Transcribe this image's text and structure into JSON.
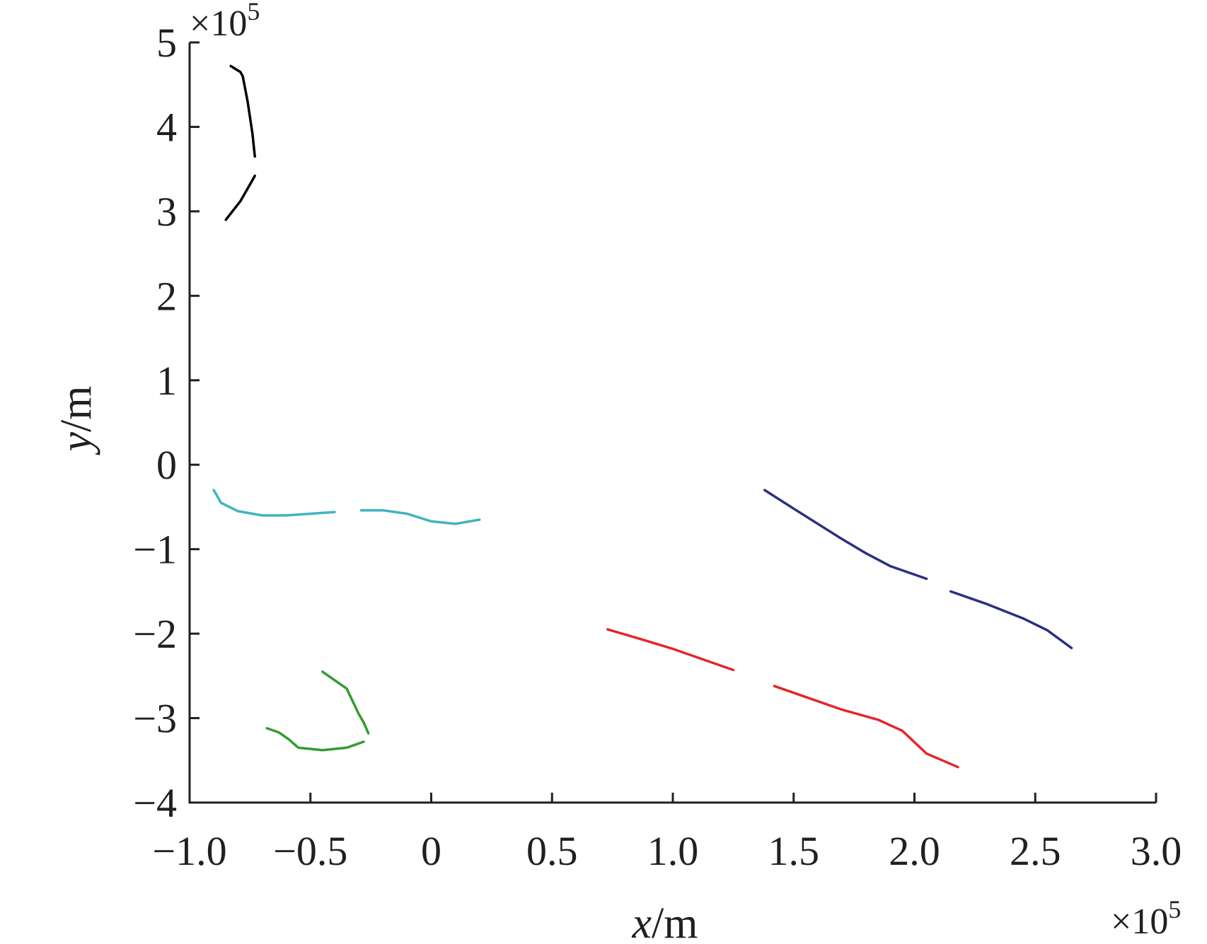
{
  "chart_data": {
    "type": "line",
    "title": "",
    "xlabel": {
      "var": "x",
      "unit": "/m"
    },
    "ylabel": {
      "var": "y",
      "unit": "/m"
    },
    "x_multiplier": {
      "base": "×10",
      "exp": "5"
    },
    "y_multiplier": {
      "base": "×10",
      "exp": "5"
    },
    "xlim": [
      -1.0,
      3.0
    ],
    "ylim": [
      -4,
      5
    ],
    "x_ticks": [
      -1.0,
      -0.5,
      0,
      0.5,
      1.0,
      1.5,
      2.0,
      2.5,
      3.0
    ],
    "x_tick_labels": [
      "−1.0",
      "−0.5",
      "0",
      "0.5",
      "1.0",
      "1.5",
      "2.0",
      "2.5",
      "3.0"
    ],
    "y_ticks": [
      -4,
      -3,
      -2,
      -1,
      0,
      1,
      2,
      3,
      4,
      5
    ],
    "y_tick_labels": [
      "−4",
      "−3",
      "−2",
      "−1",
      "0",
      "1",
      "2",
      "3",
      "4",
      "5"
    ],
    "grid": false,
    "legend": "none",
    "series": [
      {
        "color": "#000000",
        "segments": [
          [
            [
              -0.83,
              4.72
            ],
            [
              -0.79,
              4.65
            ],
            [
              -0.78,
              4.6
            ],
            [
              -0.76,
              4.3
            ],
            [
              -0.74,
              3.92
            ],
            [
              -0.73,
              3.65
            ]
          ],
          [
            [
              -0.73,
              3.42
            ],
            [
              -0.75,
              3.32
            ],
            [
              -0.79,
              3.12
            ],
            [
              -0.85,
              2.9
            ]
          ]
        ]
      },
      {
        "color": "#40b4be",
        "segments": [
          [
            [
              -0.9,
              -0.3
            ],
            [
              -0.87,
              -0.45
            ],
            [
              -0.8,
              -0.55
            ],
            [
              -0.7,
              -0.6
            ],
            [
              -0.6,
              -0.6
            ],
            [
              -0.5,
              -0.58
            ],
            [
              -0.4,
              -0.56
            ]
          ],
          [
            [
              -0.29,
              -0.54
            ],
            [
              -0.2,
              -0.54
            ],
            [
              -0.1,
              -0.58
            ],
            [
              0.0,
              -0.67
            ],
            [
              0.1,
              -0.7
            ],
            [
              0.2,
              -0.65
            ]
          ]
        ]
      },
      {
        "color": "#2b2f80",
        "segments": [
          [
            [
              1.38,
              -0.3
            ],
            [
              1.5,
              -0.52
            ],
            [
              1.6,
              -0.7
            ],
            [
              1.7,
              -0.88
            ],
            [
              1.8,
              -1.05
            ],
            [
              1.9,
              -1.2
            ],
            [
              2.05,
              -1.35
            ]
          ],
          [
            [
              2.15,
              -1.5
            ],
            [
              2.3,
              -1.65
            ],
            [
              2.45,
              -1.82
            ],
            [
              2.55,
              -1.96
            ],
            [
              2.65,
              -2.17
            ]
          ]
        ]
      },
      {
        "color": "#e3262c",
        "segments": [
          [
            [
              0.73,
              -1.95
            ],
            [
              0.85,
              -2.05
            ],
            [
              1.0,
              -2.18
            ],
            [
              1.15,
              -2.33
            ],
            [
              1.25,
              -2.43
            ]
          ],
          [
            [
              1.42,
              -2.62
            ],
            [
              1.55,
              -2.75
            ],
            [
              1.7,
              -2.9
            ],
            [
              1.85,
              -3.02
            ],
            [
              1.95,
              -3.15
            ],
            [
              2.05,
              -3.42
            ],
            [
              2.18,
              -3.58
            ]
          ]
        ]
      },
      {
        "color": "#339c2f",
        "segments": [
          [
            [
              -0.45,
              -2.45
            ],
            [
              -0.35,
              -2.65
            ],
            [
              -0.3,
              -2.95
            ],
            [
              -0.28,
              -3.05
            ],
            [
              -0.26,
              -3.18
            ]
          ],
          [
            [
              -0.28,
              -3.28
            ],
            [
              -0.35,
              -3.35
            ],
            [
              -0.45,
              -3.38
            ],
            [
              -0.55,
              -3.35
            ],
            [
              -0.59,
              -3.25
            ],
            [
              -0.63,
              -3.17
            ],
            [
              -0.68,
              -3.12
            ]
          ]
        ]
      }
    ]
  }
}
